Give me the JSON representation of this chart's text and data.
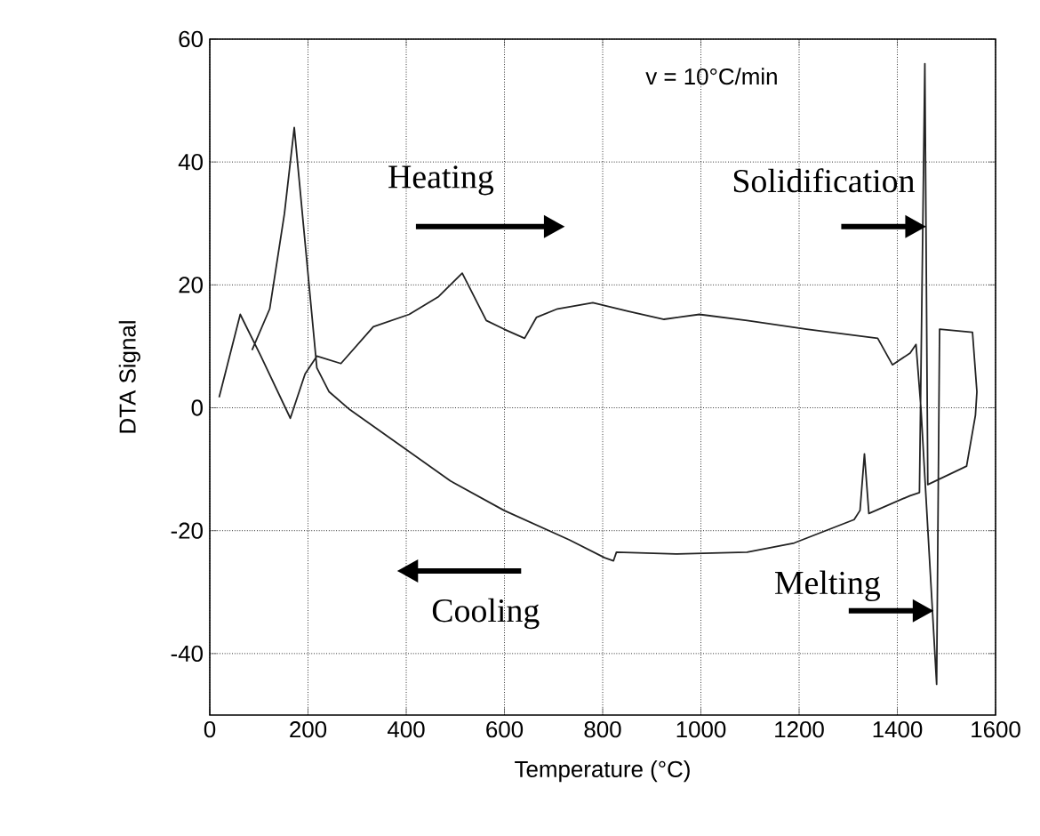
{
  "chart_data": {
    "type": "line",
    "xlabel": "Temperature (°C)",
    "ylabel": "DTA Signal",
    "xlim": [
      0,
      1600
    ],
    "ylim": [
      -50,
      60
    ],
    "xticks": [
      0,
      200,
      400,
      600,
      800,
      1000,
      1200,
      1400,
      1600
    ],
    "yticks": [
      -40,
      -20,
      0,
      20,
      40,
      60
    ],
    "grid": true,
    "marker": "none",
    "line_style": "solid",
    "annotations": [
      "v = 10°C/min",
      "Heating",
      "Solidification",
      "Cooling",
      "Melting"
    ],
    "series": [
      {
        "color": "#222222",
        "x": [
          19,
          62,
          104,
          164,
          194,
          218,
          267,
          333,
          406,
          466,
          514,
          563,
          599,
          641,
          665,
          708,
          780,
          853,
          925,
          997,
          1094,
          1215,
          1360,
          1390,
          1426,
          1438,
          1448,
          1480,
          1486,
          1553,
          1562,
          1559,
          1541,
          1504,
          1462,
          1456,
          1445,
          1426,
          1342,
          1333,
          1324,
          1312,
          1251,
          1190,
          1094,
          949,
          828,
          822,
          804,
          732,
          599,
          490,
          370,
          285,
          243,
          218,
          172,
          152,
          122,
          86
        ],
        "values": [
          1.7,
          15.2,
          8.4,
          -1.7,
          5.5,
          8.4,
          7.2,
          13.2,
          15.2,
          18.1,
          21.9,
          14.2,
          12.8,
          11.3,
          14.7,
          16.1,
          17.1,
          15.7,
          14.4,
          15.2,
          14.2,
          12.8,
          11.3,
          7.0,
          8.9,
          10.3,
          0,
          -45,
          12.8,
          12.3,
          2.6,
          -1.2,
          -9.5,
          -10.9,
          -12.5,
          56,
          -13.8,
          -14.3,
          -17.2,
          -7.5,
          -16.7,
          -18.2,
          -20.1,
          -22,
          -23.5,
          -23.8,
          -23.5,
          -24.9,
          -24.4,
          -21.5,
          -16.7,
          -11.9,
          -5.1,
          -0.3,
          2.6,
          6.5,
          45.6,
          31.6,
          16.1,
          9.4
        ]
      }
    ]
  }
}
